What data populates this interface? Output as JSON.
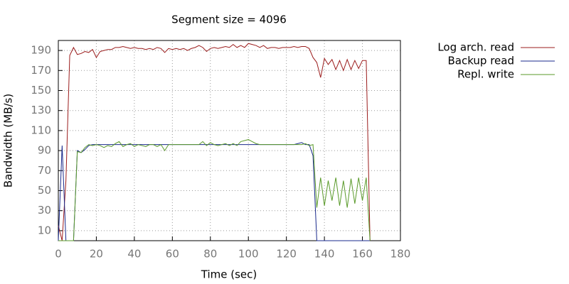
{
  "chart_data": {
    "type": "line",
    "title": "Segment size = 4096",
    "x_label": "Time (sec)",
    "y_label": "Bandwidth (MB/s)",
    "xlim": [
      0,
      180
    ],
    "xticks": [
      0,
      20,
      40,
      60,
      80,
      100,
      120,
      140,
      160,
      180
    ],
    "ylim": [
      0,
      200
    ],
    "yticks": [
      10,
      30,
      50,
      70,
      90,
      110,
      130,
      150,
      170,
      190
    ],
    "grid": true,
    "legend": "top-right-outside",
    "x": [
      0,
      2,
      4,
      6,
      8,
      10,
      12,
      14,
      16,
      18,
      20,
      22,
      24,
      26,
      28,
      30,
      32,
      34,
      36,
      38,
      40,
      42,
      44,
      46,
      48,
      50,
      52,
      54,
      56,
      58,
      60,
      62,
      64,
      66,
      68,
      70,
      72,
      74,
      76,
      78,
      80,
      82,
      84,
      86,
      88,
      90,
      92,
      94,
      96,
      98,
      100,
      102,
      104,
      106,
      108,
      110,
      112,
      114,
      116,
      118,
      120,
      122,
      124,
      126,
      128,
      130,
      132,
      134,
      136,
      138,
      140,
      142,
      144,
      146,
      148,
      150,
      152,
      154,
      156,
      158,
      160,
      162,
      164
    ],
    "series": [
      {
        "name": "Log arch. read",
        "color": "#9b1c1c",
        "values": [
          15,
          0,
          60,
          185,
          193,
          186,
          187,
          189,
          188,
          191,
          183,
          189,
          190,
          191,
          191,
          193,
          193,
          194,
          193,
          192,
          193,
          192,
          192,
          191,
          192,
          191,
          193,
          192,
          188,
          192,
          191,
          192,
          191,
          192,
          190,
          192,
          193,
          195,
          193,
          189,
          192,
          193,
          192,
          193,
          194,
          193,
          196,
          193,
          195,
          193,
          197,
          196,
          195,
          193,
          195,
          192,
          193,
          193,
          192,
          193,
          193,
          193,
          194,
          193,
          194,
          194,
          192,
          183,
          178,
          163,
          182,
          176,
          181,
          171,
          180,
          170,
          181,
          171,
          180,
          172,
          180,
          180,
          0
        ]
      },
      {
        "name": "Backup read",
        "color": "#1a2a8c",
        "values": [
          0,
          95,
          0,
          0,
          0,
          90,
          88,
          91,
          95,
          96,
          96,
          96,
          96,
          96,
          96,
          96,
          96,
          96,
          96,
          96,
          96,
          96,
          96,
          96,
          96,
          96,
          96,
          96,
          96,
          96,
          96,
          96,
          96,
          96,
          96,
          96,
          96,
          96,
          96,
          96,
          96,
          96,
          96,
          96,
          96,
          96,
          96,
          96,
          96,
          96,
          96,
          96,
          96,
          96,
          96,
          96,
          96,
          96,
          96,
          96,
          96,
          96,
          96,
          97,
          98,
          96,
          96,
          85,
          0,
          0,
          0,
          0,
          0,
          0,
          0,
          0,
          0,
          0,
          0,
          0,
          0,
          0,
          0
        ]
      },
      {
        "name": "Repl. write",
        "color": "#5a9a2a",
        "values": [
          0,
          0,
          0,
          0,
          0,
          89,
          88,
          93,
          96,
          95,
          96,
          95,
          93,
          95,
          94,
          97,
          99,
          94,
          96,
          97,
          94,
          96,
          95,
          94,
          96,
          96,
          94,
          96,
          90,
          96,
          96,
          96,
          96,
          96,
          96,
          96,
          96,
          96,
          99,
          95,
          98,
          96,
          95,
          96,
          97,
          95,
          97,
          95,
          99,
          100,
          101,
          99,
          97,
          96,
          96,
          96,
          96,
          96,
          96,
          96,
          96,
          96,
          96,
          96,
          96,
          97,
          95,
          96,
          33,
          63,
          35,
          60,
          40,
          63,
          35,
          60,
          33,
          62,
          37,
          63,
          40,
          63,
          0
        ]
      }
    ]
  }
}
